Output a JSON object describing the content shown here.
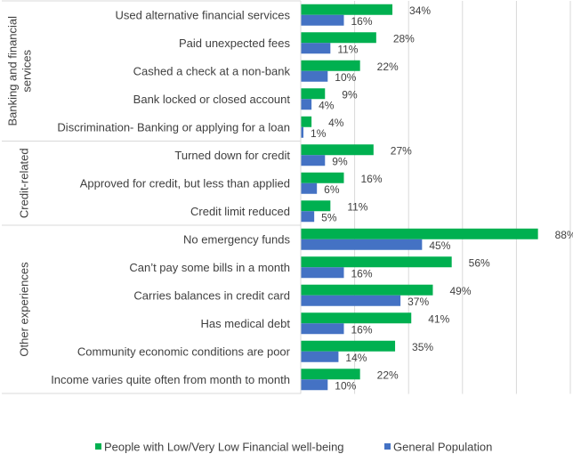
{
  "chart_data": {
    "type": "bar",
    "orientation": "horizontal",
    "xlim": [
      0,
      100
    ],
    "grid": true,
    "gridline_step": 20,
    "legend_position": "bottom",
    "colors": {
      "series_0": "#00B050",
      "series_1": "#4472C4",
      "text": "#404040",
      "grid": "#D9D9D9"
    },
    "groups": [
      {
        "label": "Banking and financial services",
        "label_lines": [
          "Banking and financial",
          "services"
        ],
        "categories": [
          "Used alternative financial services",
          "Paid unexpected fees",
          "Cashed a check at a non-bank",
          "Bank locked or closed account",
          "Discrimination- Banking or applying for a loan"
        ]
      },
      {
        "label": "Credit-related",
        "label_lines": [
          "Credit-related"
        ],
        "categories": [
          "Turned down for credit",
          "Approved for credit, but less than applied",
          "Credit limit reduced"
        ]
      },
      {
        "label": "Other experiences",
        "label_lines": [
          "Other experiences"
        ],
        "categories": [
          "No emergency funds",
          "Can’t pay some bills in a month",
          "Carries balances in credit card",
          "Has medical debt",
          "Community economic conditions are poor",
          "Income varies quite often from month to month"
        ]
      }
    ],
    "series": [
      {
        "name": "People with Low/Very Low Financial well-being",
        "values": [
          34,
          28,
          22,
          9,
          4,
          27,
          16,
          11,
          88,
          56,
          49,
          41,
          35,
          22
        ]
      },
      {
        "name": "General Population",
        "values": [
          16,
          11,
          10,
          4,
          1,
          9,
          6,
          5,
          45,
          16,
          37,
          16,
          14,
          10
        ]
      }
    ],
    "value_format": "{v}%"
  }
}
